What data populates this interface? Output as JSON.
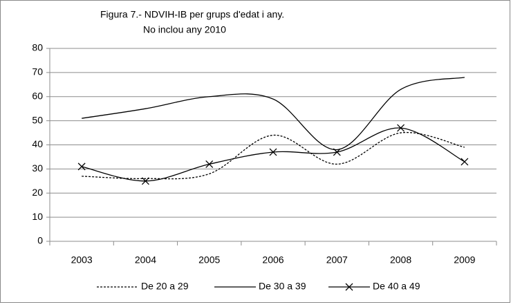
{
  "chart_data": {
    "type": "line",
    "title": "Figura 7.-  NDVIH-IB per grups d'edat i  any.",
    "subtitle": "No inclou any 2010",
    "categories": [
      "2003",
      "2004",
      "2005",
      "2006",
      "2007",
      "2008",
      "2009"
    ],
    "series": [
      {
        "name": "De 20 a 29",
        "color": "#000000",
        "dash": "3,2",
        "marker": "none",
        "values": [
          27,
          26,
          28,
          44,
          32,
          45,
          39
        ]
      },
      {
        "name": "De 30 a 39",
        "color": "#000000",
        "dash": "none",
        "marker": "none",
        "values": [
          51,
          55,
          60,
          59,
          38,
          63,
          68
        ]
      },
      {
        "name": "De 40 a 49",
        "color": "#000000",
        "dash": "none",
        "marker": "x",
        "values": [
          31,
          25,
          32,
          37,
          37,
          47,
          33
        ]
      }
    ],
    "ylim": [
      0,
      80
    ],
    "yticks": [
      0,
      10,
      20,
      30,
      40,
      50,
      60,
      70,
      80
    ],
    "grid": true,
    "smooth": true,
    "legend": "bottom"
  }
}
